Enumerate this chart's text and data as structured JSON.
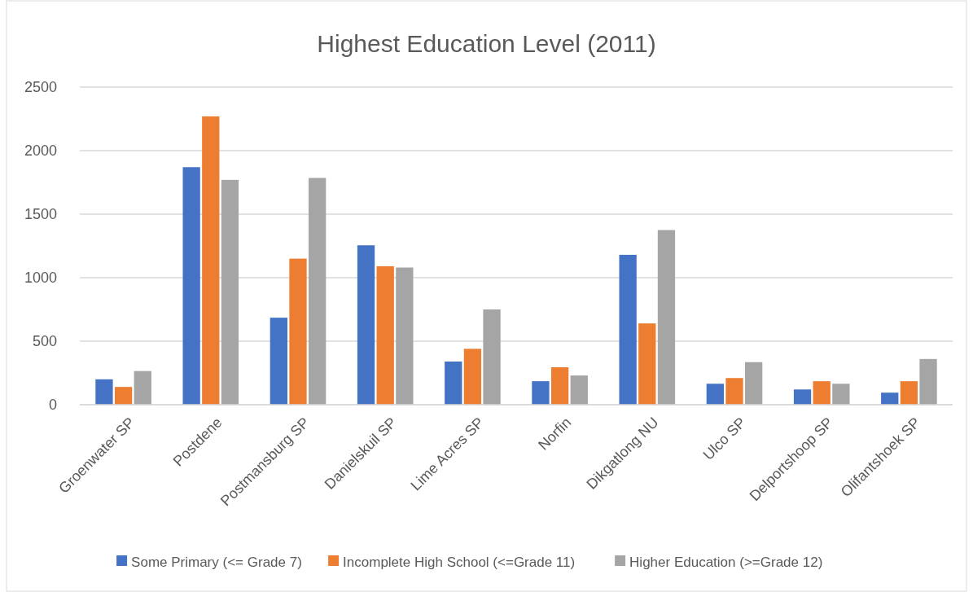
{
  "chart_data": {
    "type": "bar",
    "title": "Highest Education Level (2011)",
    "categories": [
      "Groenwater SP",
      "Postdene",
      "Postmansburg SP",
      "Danielskuil SP",
      "Lime Acres SP",
      "Norfin",
      "Dikgatlong NU",
      "Ulco SP",
      "Delportshoop SP",
      "Olifantshoek SP"
    ],
    "series": [
      {
        "name": "Some Primary (<= Grade 7)",
        "color": "#4472c4",
        "values": [
          200,
          1870,
          685,
          1255,
          340,
          185,
          1180,
          165,
          120,
          95
        ]
      },
      {
        "name": "Incomplete High School (<=Grade 11)",
        "color": "#ed7d31",
        "values": [
          140,
          2270,
          1150,
          1090,
          440,
          295,
          640,
          210,
          185,
          185
        ]
      },
      {
        "name": "Higher Education (>=Grade 12)",
        "color": "#a5a5a5",
        "values": [
          265,
          1770,
          1785,
          1080,
          750,
          230,
          1375,
          335,
          165,
          360
        ]
      }
    ],
    "ylim": [
      0,
      2500
    ],
    "yticks": [
      0,
      500,
      1000,
      1500,
      2000,
      2500
    ],
    "grid": "y",
    "legend": "bottom"
  }
}
